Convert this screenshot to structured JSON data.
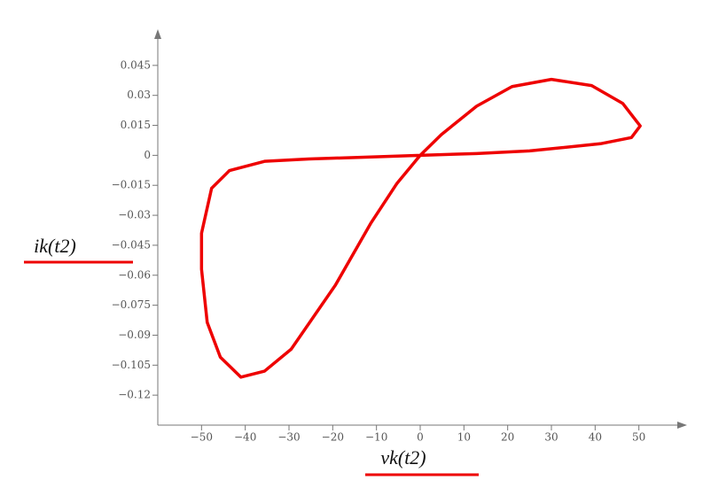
{
  "chart_data": {
    "type": "line",
    "x_label": "vk(t2)",
    "y_label": "ik(t2)",
    "xlim": [
      -60,
      60
    ],
    "ylim": [
      -0.135,
      0.06
    ],
    "xticks": [
      {
        "value": -50,
        "label": "−50"
      },
      {
        "value": -40,
        "label": "−40"
      },
      {
        "value": -30,
        "label": "−30"
      },
      {
        "value": -20,
        "label": "−20"
      },
      {
        "value": -10,
        "label": "−10"
      },
      0,
      10,
      20,
      30,
      40,
      50
    ],
    "yticks": [
      0.045,
      0.03,
      0.015,
      0,
      {
        "value": -0.015,
        "label": "−0.015"
      },
      {
        "value": -0.03,
        "label": "−0.03"
      },
      {
        "value": -0.045,
        "label": "−0.045"
      },
      {
        "value": -0.06,
        "label": "−0.06"
      },
      {
        "value": -0.075,
        "label": "−0.075"
      },
      {
        "value": -0.09,
        "label": "−0.09"
      },
      {
        "value": -0.105,
        "label": "−0.105"
      },
      {
        "value": -0.12,
        "label": "−0.12"
      }
    ],
    "x": [
      0,
      4.8,
      12.9,
      21,
      30,
      39.2,
      46.3,
      50.3,
      48.3,
      41.2,
      25,
      12.9,
      0,
      -12,
      -25.5,
      -35.6,
      -43.6,
      -47.7,
      -50,
      -50,
      -48.7,
      -45.7,
      -41,
      -35.6,
      -29.5,
      -19.4,
      -11.3,
      -5.3,
      0
    ],
    "series": [
      {
        "color": "#ee0000",
        "values": [
          0,
          0.0103,
          0.0246,
          0.0344,
          0.038,
          0.0349,
          0.026,
          0.0147,
          0.0089,
          0.0058,
          0.0022,
          0.0009,
          0,
          -0.0009,
          -0.0018,
          -0.003,
          -0.0076,
          -0.0165,
          -0.039,
          -0.057,
          -0.0836,
          -0.101,
          -0.111,
          -0.108,
          -0.097,
          -0.065,
          -0.034,
          -0.014,
          0
        ]
      }
    ]
  }
}
